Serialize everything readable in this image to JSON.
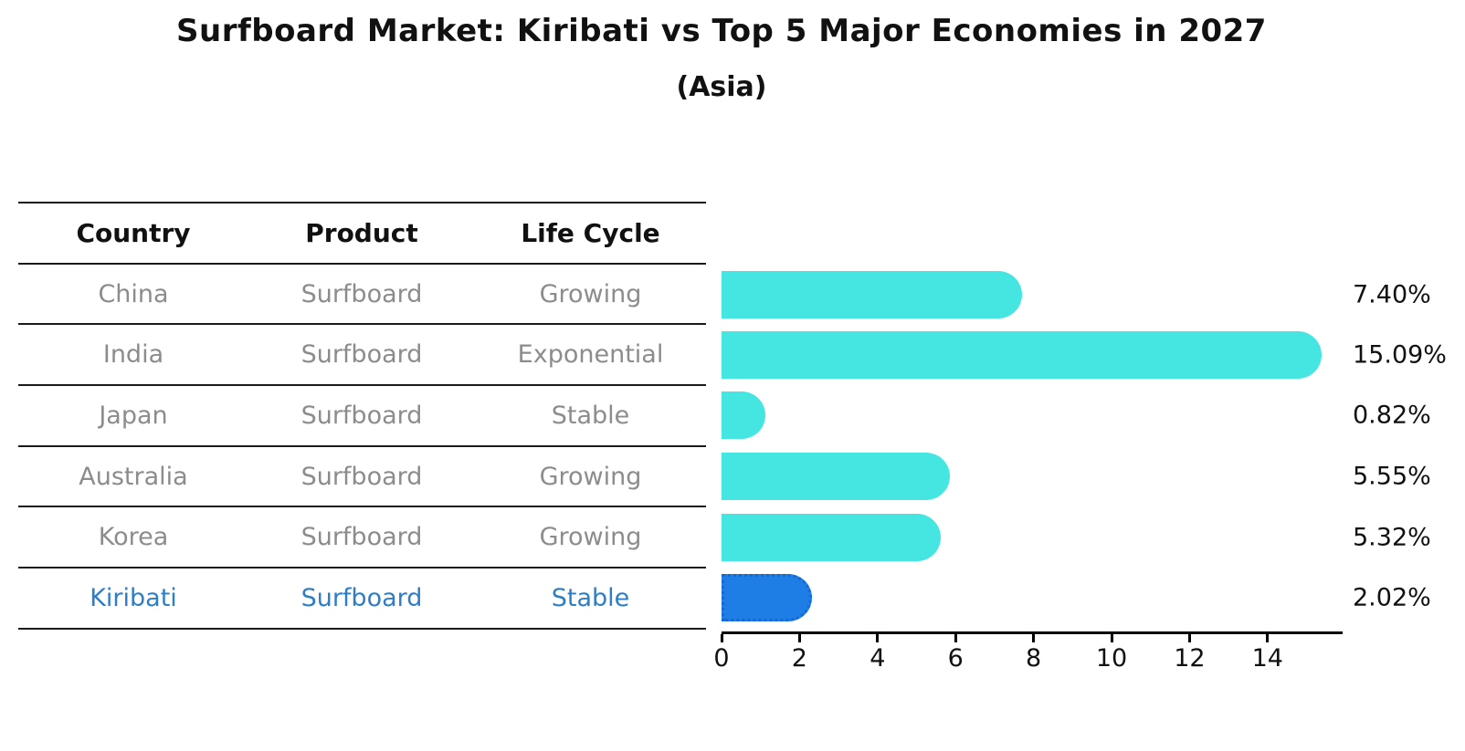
{
  "title": "Surfboard Market: Kiribati vs Top 5 Major Economies in 2027",
  "subtitle": "(Asia)",
  "table": {
    "headers": [
      "Country",
      "Product",
      "Life Cycle"
    ],
    "rows": [
      {
        "country": "China",
        "product": "Surfboard",
        "life_cycle": "Growing"
      },
      {
        "country": "India",
        "product": "Surfboard",
        "life_cycle": "Exponential"
      },
      {
        "country": "Japan",
        "product": "Surfboard",
        "life_cycle": "Stable"
      },
      {
        "country": "Australia",
        "product": "Surfboard",
        "life_cycle": "Growing"
      },
      {
        "country": "Korea",
        "product": "Surfboard",
        "life_cycle": "Growing"
      },
      {
        "country": "Kiribati",
        "product": "Surfboard",
        "life_cycle": "Stable"
      }
    ]
  },
  "chart_data": {
    "type": "bar",
    "orientation": "horizontal",
    "title": "Surfboard Market: Kiribati vs Top 5 Major Economies in 2027",
    "subtitle": "(Asia)",
    "categories": [
      "China",
      "India",
      "Japan",
      "Australia",
      "Korea",
      "Kiribati"
    ],
    "values": [
      7.4,
      15.09,
      0.82,
      5.55,
      5.32,
      2.02
    ],
    "value_labels": [
      "7.40%",
      "15.09%",
      "0.82%",
      "5.55%",
      "5.32%",
      "2.02%"
    ],
    "xlabel": "",
    "ylabel": "",
    "xlim": [
      0,
      15.9
    ],
    "xticks": [
      0,
      2,
      4,
      6,
      8,
      10,
      12,
      14
    ],
    "grid": false,
    "legend": false,
    "bar_color": "#45E6E2",
    "highlight_color": "#1E7EE5",
    "highlight_index": 5
  },
  "colors": {
    "background": "#FFFFFF",
    "bar_cyan": "#45E6E2",
    "bar_blue": "#1E7EE5",
    "highlight_border": "#1568D6",
    "highlight_text": "#2F7EC5",
    "row_text": "#8C8C8C",
    "header_text": "#111111",
    "axis": "#000000"
  }
}
